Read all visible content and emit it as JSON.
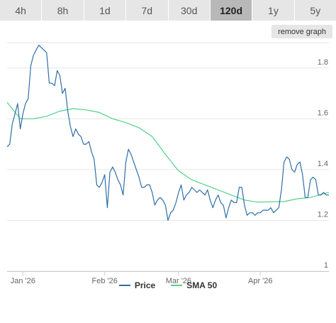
{
  "tabs": [
    {
      "label": "4h",
      "active": false
    },
    {
      "label": "8h",
      "active": false
    },
    {
      "label": "1d",
      "active": false
    },
    {
      "label": "7d",
      "active": false
    },
    {
      "label": "30d",
      "active": false
    },
    {
      "label": "120d",
      "active": true
    },
    {
      "label": "1y",
      "active": false
    },
    {
      "label": "5y",
      "active": false
    }
  ],
  "remove_graph_label": "remove graph",
  "colors": {
    "price": "#2f6fa7",
    "sma": "#4fd28a",
    "grid": "#e6e6e6",
    "axis_text": "#666666"
  },
  "chart_data": {
    "type": "line",
    "ylim": [
      1.0,
      1.9
    ],
    "y_ticks": [
      1,
      1.2,
      1.4,
      1.6,
      1.8
    ],
    "x_ticks": [
      {
        "label": "Jan '26",
        "day": 6
      },
      {
        "label": "Feb '26",
        "day": 37
      },
      {
        "label": "Mar '26",
        "day": 65
      },
      {
        "label": "Apr '26",
        "day": 96
      }
    ],
    "xlim": [
      0,
      122
    ],
    "grid": true,
    "legend_position": "bottom",
    "series": [
      {
        "name": "Price",
        "color": "#2f6fa7",
        "x": [
          0,
          1,
          2,
          3,
          4,
          5,
          6,
          7,
          8,
          9,
          10,
          11,
          12,
          13,
          14,
          15,
          16,
          17,
          18,
          19,
          20,
          21,
          22,
          23,
          24,
          25,
          26,
          27,
          28,
          29,
          30,
          31,
          32,
          33,
          34,
          35,
          36,
          37,
          38,
          39,
          40,
          41,
          42,
          43,
          44,
          45,
          46,
          47,
          48,
          49,
          50,
          51,
          52,
          53,
          54,
          55,
          56,
          57,
          58,
          59,
          60,
          61,
          62,
          63,
          64,
          65,
          66,
          67,
          68,
          69,
          70,
          71,
          72,
          73,
          74,
          75,
          76,
          77,
          78,
          79,
          80,
          81,
          82,
          83,
          84,
          85,
          86,
          87,
          88,
          89,
          90,
          91,
          92,
          93,
          94,
          95,
          96,
          97,
          98,
          99,
          100,
          101,
          102,
          103,
          104,
          105,
          106,
          107,
          108,
          109,
          110,
          111,
          112,
          113,
          114,
          115,
          116,
          117,
          118,
          119,
          120,
          121,
          122
        ],
        "values": [
          1.49,
          1.5,
          1.58,
          1.62,
          1.66,
          1.56,
          1.62,
          1.66,
          1.68,
          1.81,
          1.85,
          1.87,
          1.89,
          1.88,
          1.87,
          1.86,
          1.74,
          1.74,
          1.73,
          1.79,
          1.77,
          1.7,
          1.72,
          1.63,
          1.57,
          1.53,
          1.56,
          1.54,
          1.53,
          1.5,
          1.5,
          1.51,
          1.47,
          1.44,
          1.34,
          1.33,
          1.35,
          1.38,
          1.25,
          1.39,
          1.41,
          1.39,
          1.36,
          1.34,
          1.3,
          1.43,
          1.48,
          1.46,
          1.43,
          1.4,
          1.37,
          1.33,
          1.33,
          1.34,
          1.34,
          1.31,
          1.26,
          1.28,
          1.29,
          1.28,
          1.26,
          1.2,
          1.23,
          1.24,
          1.27,
          1.31,
          1.34,
          1.28,
          1.3,
          1.31,
          1.33,
          1.32,
          1.31,
          1.32,
          1.31,
          1.3,
          1.32,
          1.28,
          1.25,
          1.28,
          1.3,
          1.27,
          1.26,
          1.21,
          1.25,
          1.28,
          1.27,
          1.27,
          1.33,
          1.33,
          1.26,
          1.22,
          1.23,
          1.23,
          1.22,
          1.23,
          1.23,
          1.24,
          1.24,
          1.24,
          1.25,
          1.23,
          1.24,
          1.25,
          1.32,
          1.43,
          1.45,
          1.44,
          1.4,
          1.39,
          1.42,
          1.43,
          1.38,
          1.29,
          1.29,
          1.36,
          1.37,
          1.36,
          1.3,
          1.3,
          1.31,
          1.3,
          1.3
        ]
      },
      {
        "name": "SMA 50",
        "color": "#4fd28a",
        "x": [
          0,
          5,
          10,
          15,
          20,
          25,
          30,
          35,
          40,
          45,
          50,
          55,
          60,
          65,
          70,
          75,
          80,
          85,
          90,
          95,
          100,
          105,
          110,
          115,
          120,
          122
        ],
        "values": [
          1.665,
          1.6,
          1.6,
          1.61,
          1.63,
          1.64,
          1.635,
          1.625,
          1.6,
          1.585,
          1.565,
          1.53,
          1.46,
          1.395,
          1.36,
          1.34,
          1.32,
          1.3,
          1.28,
          1.272,
          1.273,
          1.274,
          1.285,
          1.29,
          1.305,
          1.31
        ]
      }
    ]
  }
}
